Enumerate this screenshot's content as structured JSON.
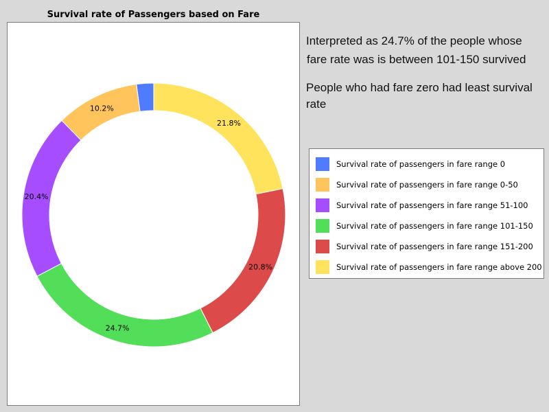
{
  "chart_data": {
    "type": "pie",
    "title": "Survival rate of Passengers based on Fare",
    "categories": [
      "Survival rate of passengers in fare range 0",
      "Survival rate of passengers in fare range 0-50",
      "Survival rate of passengers in fare range 51-100",
      "Survival rate of passengers in fare range 101-150",
      "Survival rate of passengers in fare range 151-200",
      "Survival rate of passengers in fare range above 200"
    ],
    "values": [
      2.1,
      10.2,
      20.4,
      24.7,
      20.8,
      21.8
    ],
    "data_labels": [
      "",
      "10.2%",
      "20.4%",
      "24.7%",
      "20.8%",
      "21.8%"
    ],
    "colors": [
      "#4f7cff",
      "#ffc45c",
      "#a64dff",
      "#52de58",
      "#dc4a4a",
      "#ffe35c"
    ],
    "style": "donut",
    "legend_position": "right"
  },
  "notes": {
    "line1": "Interpreted as 24.7% of the people whose",
    "line2": "fare rate was is between 101-150 survived",
    "line3": "People who had fare zero had least survival",
    "line4": "rate"
  }
}
